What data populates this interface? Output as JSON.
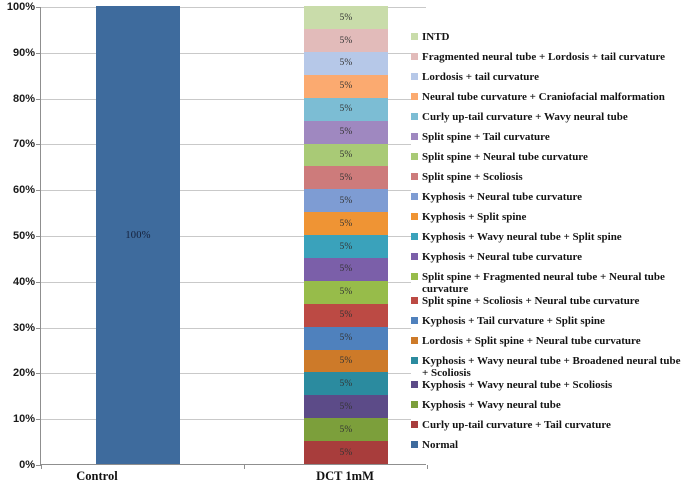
{
  "chart_data": {
    "type": "bar",
    "stacked": true,
    "percent_stacked": true,
    "title": "",
    "xlabel": "",
    "ylabel": "",
    "categories": [
      "Control",
      "DCT 1mM"
    ],
    "y_ticks": [
      "0%",
      "10%",
      "20%",
      "30%",
      "40%",
      "50%",
      "60%",
      "70%",
      "80%",
      "90%",
      "100%"
    ],
    "ylim": [
      0,
      100
    ],
    "grid": "horizontal",
    "legend_position": "right",
    "data_label_suffix": "%",
    "series": [
      {
        "name": "INTD",
        "color": "#c9dcaa",
        "values": [
          0,
          5
        ]
      },
      {
        "name": "Fragmented neural tube + Lordosis + tail curvature",
        "color": "#e2bbba",
        "values": [
          0,
          5
        ]
      },
      {
        "name": "Lordosis + tail curvature",
        "color": "#b6c8e8",
        "values": [
          0,
          5
        ]
      },
      {
        "name": "Neural tube curvature +  Craniofacial malformation",
        "color": "#fbaa70",
        "values": [
          0,
          5
        ]
      },
      {
        "name": "Curly up-tail curvature + Wavy neural tube",
        "color": "#7cbdd4",
        "values": [
          0,
          5
        ]
      },
      {
        "name": "Split spine + Tail curvature",
        "color": "#9f88c0",
        "values": [
          0,
          5
        ]
      },
      {
        "name": "Split spine + Neural tube curvature",
        "color": "#a9ca76",
        "values": [
          0,
          5
        ]
      },
      {
        "name": "Split spine + Scoliosis",
        "color": "#cd7b7b",
        "values": [
          0,
          5
        ]
      },
      {
        "name": "Kyphosis +  Neural tube curvature",
        "color": "#7e9cd3",
        "values": [
          0,
          5
        ]
      },
      {
        "name": "Kyphosis +  Split spine",
        "color": "#ef9434",
        "values": [
          0,
          5
        ]
      },
      {
        "name": "Kyphosis + Wavy neural tube + Split spine",
        "color": "#3aa2bb",
        "values": [
          0,
          5
        ]
      },
      {
        "name": "Kyphosis + Neural tube curvature",
        "color": "#7b5fa9",
        "values": [
          0,
          5
        ]
      },
      {
        "name": "Split spine + Fragmented neural tube + Neural tube curvature",
        "color": "#97bc4a",
        "values": [
          0,
          5
        ]
      },
      {
        "name": "Split spine + Scoliosis + Neural tube curvature",
        "color": "#bc4a44",
        "values": [
          0,
          5
        ]
      },
      {
        "name": "Kyphosis + Tail curvature + Split spine",
        "color": "#4f81bd",
        "values": [
          0,
          5
        ]
      },
      {
        "name": "Lordosis + Split spine + Neural tube curvature",
        "color": "#cd7a29",
        "values": [
          0,
          5
        ]
      },
      {
        "name": "Kyphosis + Wavy neural tube + Broadened neural tube + Scoliosis",
        "color": "#2b8b9f",
        "values": [
          0,
          5
        ]
      },
      {
        "name": "Kyphosis +  Wavy neural tube + Scoliosis",
        "color": "#5c4b88",
        "values": [
          0,
          5
        ]
      },
      {
        "name": "Kyphosis +  Wavy neural tube",
        "color": "#7c9f3b",
        "values": [
          0,
          5
        ]
      },
      {
        "name": "Curly up-tail curvature +  Tail curvature",
        "color": "#a83d3c",
        "values": [
          0,
          5
        ]
      },
      {
        "name": "Normal",
        "color": "#3e6b9d",
        "values": [
          100,
          0
        ]
      }
    ]
  }
}
